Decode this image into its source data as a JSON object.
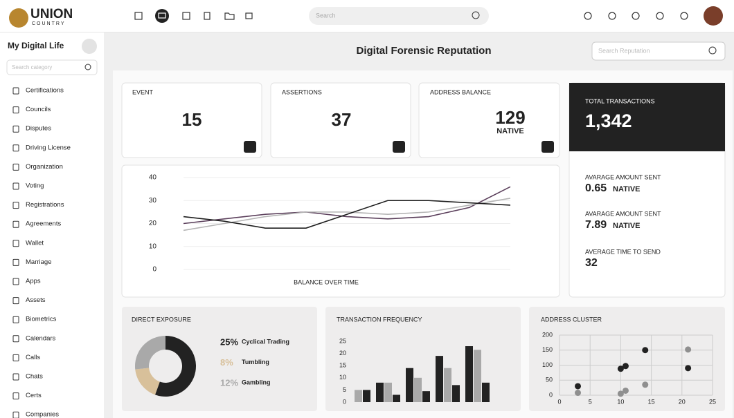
{
  "header": {
    "logo_main": "UNION",
    "logo_sub": "COUNTRY",
    "search_placeholder": "Search"
  },
  "sidebar": {
    "title": "My Digital Life",
    "search_placeholder": "Search category",
    "items": [
      "Certifications",
      "Councils",
      "Disputes",
      "Driving License",
      "Organization",
      "Voting",
      "Registrations",
      "Agreements",
      "Wallet",
      "Marriage",
      "Apps",
      "Assets",
      "Biometrics",
      "Calendars",
      "Calls",
      "Chats",
      "Certs",
      "Companies"
    ]
  },
  "main": {
    "title": "Digital Forensic Reputation",
    "search_placeholder": "Search Reputation"
  },
  "stats": [
    {
      "label": "EVENT",
      "value": 15
    },
    {
      "label": "ASSERTIONS",
      "value": 37
    },
    {
      "label": "ADDRESS BALANCE",
      "value": 129,
      "unit": "NATIVE"
    }
  ],
  "totals": {
    "label": "TOTAL TRANSACTIONS",
    "value": "1,342"
  },
  "metrics": [
    {
      "label": "AVARAGE AMOUNT SENT",
      "value": "0.65",
      "unit": "NATIVE"
    },
    {
      "label": "AVARAGE AMOUNT SENT",
      "value": "7.89",
      "unit": "NATIVE"
    },
    {
      "label": "AVERAGE TIME TO SEND",
      "value": "32"
    }
  ],
  "balance_chart": {
    "type": "line",
    "xlabel": "BALANCE OVER TIME",
    "categories": [
      null,
      null,
      null,
      null,
      null,
      null,
      null,
      null,
      null
    ],
    "ylim": [
      0,
      40
    ],
    "yticks": [
      0,
      10,
      20,
      30,
      40
    ],
    "grid": true,
    "series": [
      {
        "color": "#5b3f5b",
        "values": [
          20,
          22,
          24,
          25,
          23,
          22,
          23,
          27,
          36
        ]
      },
      {
        "color": "#b4b4b4",
        "values": [
          17,
          20,
          23,
          25,
          25,
          24,
          25,
          28,
          31
        ]
      },
      {
        "color": "#1e1e1e",
        "values": [
          23,
          21,
          18,
          18,
          24,
          30,
          30,
          29,
          28
        ]
      }
    ]
  },
  "direct_exposure": {
    "type": "pie",
    "title": "DIRECT EXPOSURE",
    "categories": [
      "Cyclical Trading",
      "Tumbling",
      "Gambling"
    ],
    "values": [
      25,
      8,
      12
    ],
    "value_labels": [
      "25%",
      "8%",
      "12%"
    ],
    "colors": [
      "#222222",
      "#d8c09a",
      "#a9a9a9"
    ]
  },
  "transaction_frequency": {
    "type": "bar",
    "title": "TRANSACTION FREQUENCY",
    "categories": [
      null,
      null,
      null,
      null,
      null
    ],
    "ylim": [
      0,
      25
    ],
    "yticks": [
      0,
      5,
      10,
      15,
      20,
      25
    ],
    "series": [
      {
        "color": "#222222",
        "values": [
          null,
          8,
          14,
          19,
          23
        ]
      },
      {
        "color": "#a9a9a9",
        "values": [
          5,
          8,
          10,
          14,
          21.5
        ]
      },
      {
        "color": "#222222",
        "values": [
          5,
          3,
          4.5,
          7,
          8
        ]
      }
    ]
  },
  "address_cluster": {
    "type": "scatter",
    "title": "ADDRESS CLUSTER",
    "xlim": [
      0,
      25
    ],
    "xticks": [
      0,
      5,
      10,
      15,
      20,
      25
    ],
    "ylim": [
      0,
      200
    ],
    "yticks": [
      0,
      50,
      100,
      150,
      200
    ],
    "grid": true,
    "series": [
      {
        "color": "#222222",
        "x": [
          3,
          10,
          10.8,
          14,
          21
        ],
        "values": [
          30,
          88,
          97,
          150,
          90
        ]
      },
      {
        "color": "#8f8f8f",
        "x": [
          3,
          10,
          10.8,
          14,
          21
        ],
        "values": [
          8,
          5,
          15,
          35,
          152
        ]
      }
    ]
  }
}
